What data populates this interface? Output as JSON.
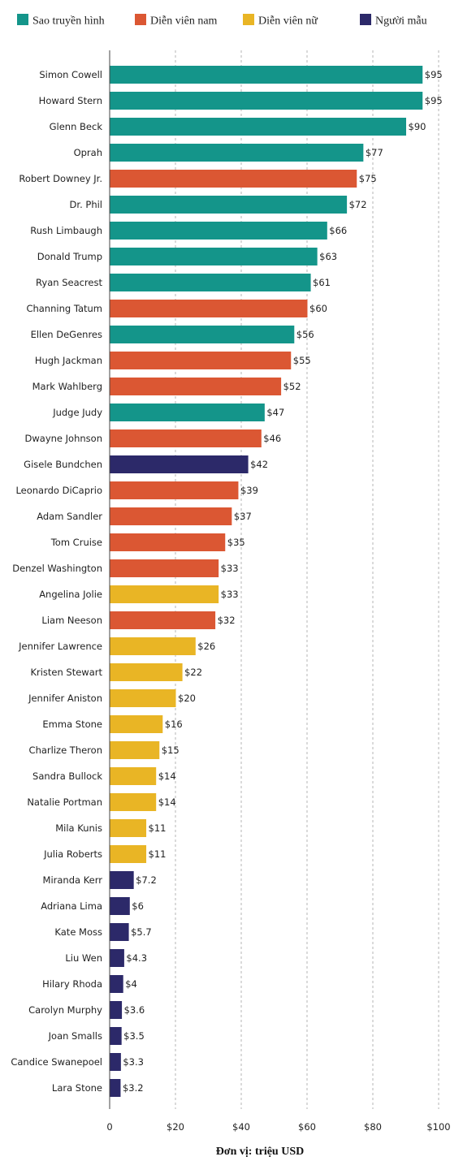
{
  "chart_data": {
    "type": "bar",
    "orientation": "horizontal",
    "legend": {
      "placement": "top",
      "entries": [
        {
          "name": "Sao truyền hình",
          "color": "#14958a"
        },
        {
          "name": "Diễn viên nam",
          "color": "#db5733"
        },
        {
          "name": "Diễn viên nữ",
          "color": "#e9b525"
        },
        {
          "name": "Người mẫu",
          "color": "#2c2969"
        }
      ]
    },
    "xlabel": "Đơn vị: triệu USD",
    "xlim": [
      0,
      100
    ],
    "xticks": [
      0,
      20,
      40,
      60,
      80,
      100
    ],
    "xtick_labels": [
      "0",
      "$20",
      "$40",
      "$60",
      "$80",
      "$100"
    ],
    "grid": true,
    "value_prefix": "$",
    "bars": [
      {
        "label": "Simon Cowell",
        "value": 95,
        "group": 0
      },
      {
        "label": "Howard Stern",
        "value": 95,
        "group": 0
      },
      {
        "label": "Glenn Beck",
        "value": 90,
        "group": 0
      },
      {
        "label": "Oprah",
        "value": 77,
        "group": 0
      },
      {
        "label": "Robert Downey Jr.",
        "value": 75,
        "group": 1
      },
      {
        "label": "Dr. Phil",
        "value": 72,
        "group": 0
      },
      {
        "label": "Rush Limbaugh",
        "value": 66,
        "group": 0
      },
      {
        "label": "Donald Trump",
        "value": 63,
        "group": 0
      },
      {
        "label": "Ryan Seacrest",
        "value": 61,
        "group": 0
      },
      {
        "label": "Channing Tatum",
        "value": 60,
        "group": 1
      },
      {
        "label": "Ellen DeGenres",
        "value": 56,
        "group": 0
      },
      {
        "label": "Hugh Jackman",
        "value": 55,
        "group": 1
      },
      {
        "label": "Mark Wahlberg",
        "value": 52,
        "group": 1
      },
      {
        "label": "Judge Judy",
        "value": 47,
        "group": 0
      },
      {
        "label": "Dwayne Johnson",
        "value": 46,
        "group": 1
      },
      {
        "label": "Gisele Bundchen",
        "value": 42,
        "group": 3
      },
      {
        "label": "Leonardo DiCaprio",
        "value": 39,
        "group": 1
      },
      {
        "label": "Adam Sandler",
        "value": 37,
        "group": 1
      },
      {
        "label": "Tom Cruise",
        "value": 35,
        "group": 1
      },
      {
        "label": "Denzel Washington",
        "value": 33,
        "group": 1
      },
      {
        "label": "Angelina Jolie",
        "value": 33,
        "group": 2
      },
      {
        "label": "Liam Neeson",
        "value": 32,
        "group": 1
      },
      {
        "label": "Jennifer Lawrence",
        "value": 26,
        "group": 2
      },
      {
        "label": "Kristen Stewart",
        "value": 22,
        "group": 2
      },
      {
        "label": "Jennifer Aniston",
        "value": 20,
        "group": 2
      },
      {
        "label": "Emma Stone",
        "value": 16,
        "group": 2
      },
      {
        "label": "Charlize Theron",
        "value": 15,
        "group": 2
      },
      {
        "label": "Sandra Bullock",
        "value": 14,
        "group": 2
      },
      {
        "label": "Natalie Portman",
        "value": 14,
        "group": 2
      },
      {
        "label": "Mila Kunis",
        "value": 11,
        "group": 2
      },
      {
        "label": "Julia Roberts",
        "value": 11,
        "group": 2
      },
      {
        "label": "Miranda Kerr",
        "value": 7.2,
        "group": 3
      },
      {
        "label": "Adriana Lima",
        "value": 6,
        "group": 3
      },
      {
        "label": "Kate Moss",
        "value": 5.7,
        "group": 3
      },
      {
        "label": "Liu Wen",
        "value": 4.3,
        "group": 3
      },
      {
        "label": "Hilary Rhoda",
        "value": 4,
        "group": 3
      },
      {
        "label": "Carolyn Murphy",
        "value": 3.6,
        "group": 3
      },
      {
        "label": "Joan Smalls",
        "value": 3.5,
        "group": 3
      },
      {
        "label": "Candice Swanepoel",
        "value": 3.3,
        "group": 3
      },
      {
        "label": "Lara Stone",
        "value": 3.2,
        "group": 3
      }
    ]
  }
}
